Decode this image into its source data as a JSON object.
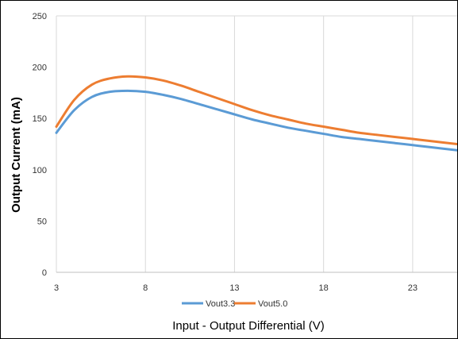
{
  "chart_data": {
    "type": "line",
    "title": "",
    "xlabel": "Input - Output Differential (V)",
    "ylabel": "Output Current (mA)",
    "xlim": [
      3,
      25.5
    ],
    "ylim": [
      0,
      250
    ],
    "xticks": [
      3,
      8,
      13,
      18,
      23
    ],
    "yticks": [
      0,
      50,
      100,
      150,
      200,
      250
    ],
    "grid": "vertical",
    "legend": "bottom",
    "x": [
      3,
      4,
      5,
      6,
      7,
      8,
      9,
      10,
      11,
      12,
      13,
      14,
      15,
      16,
      17,
      18,
      19,
      20,
      21,
      22,
      23,
      24,
      25.5
    ],
    "series": [
      {
        "name": "Vout3.3",
        "color": "#5B9BD5",
        "values": [
          136,
          158,
          171,
          176,
          177,
          176,
          173,
          169,
          164,
          159,
          154,
          149,
          145,
          141,
          138,
          135,
          132,
          130,
          128,
          126,
          124,
          122,
          119
        ]
      },
      {
        "name": "Vout5.0",
        "color": "#ED7D31",
        "values": [
          142,
          168,
          183,
          189,
          191,
          190,
          187,
          182,
          176,
          170,
          164,
          158,
          153,
          149,
          145,
          142,
          139,
          136,
          134,
          132,
          130,
          128,
          125
        ]
      }
    ]
  }
}
